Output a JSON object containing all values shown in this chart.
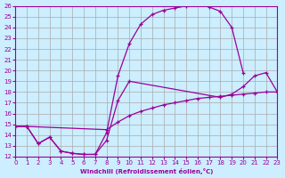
{
  "xlabel": "Windchill (Refroidissement éolien,°C)",
  "bg_color": "#cceeff",
  "grid_color": "#aaaaaa",
  "line_color": "#990099",
  "xlim": [
    0,
    23
  ],
  "ylim": [
    12,
    26
  ],
  "xticks": [
    0,
    1,
    2,
    3,
    4,
    5,
    6,
    7,
    8,
    9,
    10,
    11,
    12,
    13,
    14,
    15,
    16,
    17,
    18,
    19,
    20,
    21,
    22,
    23
  ],
  "yticks": [
    12,
    13,
    14,
    15,
    16,
    17,
    18,
    19,
    20,
    21,
    22,
    23,
    24,
    25,
    26
  ],
  "line1_x": [
    0,
    1,
    2,
    3,
    4,
    5,
    6,
    7,
    8,
    9,
    10,
    11,
    12,
    13,
    14,
    15,
    16,
    17,
    18,
    19,
    20
  ],
  "line1_y": [
    14.8,
    14.8,
    13.2,
    13.8,
    12.5,
    12.3,
    12.2,
    12.2,
    14.2,
    19.5,
    22.5,
    24.3,
    25.2,
    25.6,
    25.8,
    26.0,
    26.2,
    25.9,
    25.5,
    24.0,
    19.8
  ],
  "line2_x": [
    0,
    1,
    2,
    3,
    4,
    5,
    6,
    7,
    8,
    9,
    10,
    18,
    19,
    20,
    21,
    22,
    23
  ],
  "line2_y": [
    14.8,
    14.8,
    13.2,
    13.8,
    12.5,
    12.3,
    12.2,
    12.2,
    13.5,
    17.2,
    19.0,
    17.5,
    17.8,
    18.5,
    19.5,
    19.8,
    18.0
  ],
  "line3_x": [
    0,
    1,
    8,
    9,
    10,
    11,
    12,
    13,
    14,
    15,
    16,
    17,
    18,
    19,
    20,
    21,
    22,
    23
  ],
  "line3_y": [
    14.8,
    14.8,
    14.5,
    15.2,
    15.8,
    16.2,
    16.5,
    16.8,
    17.0,
    17.2,
    17.4,
    17.5,
    17.6,
    17.7,
    17.8,
    17.9,
    18.0,
    18.0
  ]
}
